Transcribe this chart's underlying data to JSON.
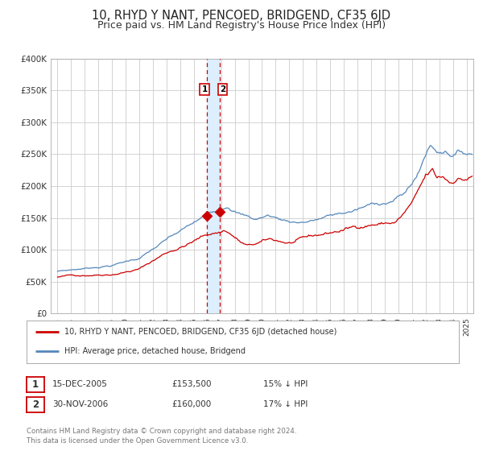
{
  "title": "10, RHYD Y NANT, PENCOED, BRIDGEND, CF35 6JD",
  "subtitle": "Price paid vs. HM Land Registry's House Price Index (HPI)",
  "title_fontsize": 10.5,
  "subtitle_fontsize": 9,
  "ylim": [
    0,
    400000
  ],
  "xlim_start": 1994.5,
  "xlim_end": 2025.5,
  "yticks": [
    0,
    50000,
    100000,
    150000,
    200000,
    250000,
    300000,
    350000,
    400000
  ],
  "ytick_labels": [
    "£0",
    "£50K",
    "£100K",
    "£150K",
    "£200K",
    "£250K",
    "£300K",
    "£350K",
    "£400K"
  ],
  "xticks": [
    1995,
    1996,
    1997,
    1998,
    1999,
    2000,
    2001,
    2002,
    2003,
    2004,
    2005,
    2006,
    2007,
    2008,
    2009,
    2010,
    2011,
    2012,
    2013,
    2014,
    2015,
    2016,
    2017,
    2018,
    2019,
    2020,
    2021,
    2022,
    2023,
    2024,
    2025
  ],
  "red_line_color": "#cc0000",
  "blue_line_color": "#5588bb",
  "shade_color": "#ddeeff",
  "sale1_x": 2005.96,
  "sale1_y": 153500,
  "sale2_x": 2006.92,
  "sale2_y": 160000,
  "vline1_x": 2005.96,
  "vline2_x": 2006.92,
  "legend_line1": "10, RHYD Y NANT, PENCOED, BRIDGEND, CF35 6JD (detached house)",
  "legend_line2": "HPI: Average price, detached house, Bridgend",
  "table_row1": [
    "1",
    "15-DEC-2005",
    "£153,500",
    "15% ↓ HPI"
  ],
  "table_row2": [
    "2",
    "30-NOV-2006",
    "£160,000",
    "17% ↓ HPI"
  ],
  "footer1": "Contains HM Land Registry data © Crown copyright and database right 2024.",
  "footer2": "This data is licensed under the Open Government Licence v3.0.",
  "background_color": "#ffffff",
  "grid_color": "#cccccc"
}
